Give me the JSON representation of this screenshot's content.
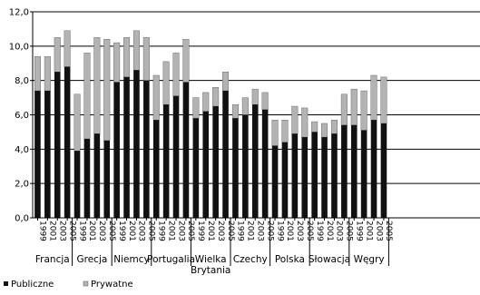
{
  "chart_data": {
    "type": "bar",
    "stacked": true,
    "title": "",
    "xlabel": "",
    "ylabel": "",
    "ylim": [
      0,
      12
    ],
    "yticks": [
      "0,0",
      "2,0",
      "4,0",
      "6,0",
      "8,0",
      "10,0",
      "12,0"
    ],
    "grid": true,
    "legend_position": "bottom-left",
    "year_labels": [
      "1999",
      "2001",
      "2003",
      "2005"
    ],
    "series": [
      {
        "name": "Publiczne",
        "color": "#111111"
      },
      {
        "name": "Prywatne",
        "color": "#b3b3b3"
      }
    ],
    "groups": [
      {
        "label": [
          "Francja"
        ],
        "public": [
          7.4,
          7.4,
          8.5,
          8.8
        ],
        "private": [
          2.0,
          2.0,
          2.0,
          2.1
        ]
      },
      {
        "label": [
          "Grecja"
        ],
        "public": [
          3.9,
          4.6,
          4.9,
          4.5
        ],
        "private": [
          3.3,
          5.0,
          5.6,
          5.9
        ]
      },
      {
        "label": [
          "Niemcy"
        ],
        "public": [
          7.9,
          8.2,
          8.6,
          8.0
        ],
        "private": [
          2.3,
          2.3,
          2.3,
          2.5
        ]
      },
      {
        "label": [
          "Portugalia"
        ],
        "public": [
          5.7,
          6.6,
          7.1,
          7.9
        ],
        "private": [
          2.6,
          2.5,
          2.5,
          2.5
        ]
      },
      {
        "label": [
          "Wielka",
          "Brytania"
        ],
        "public": [
          5.8,
          6.2,
          6.5,
          7.4
        ],
        "private": [
          1.2,
          1.1,
          1.1,
          1.1
        ]
      },
      {
        "label": [
          "Czechy"
        ],
        "public": [
          5.8,
          6.0,
          6.6,
          6.3
        ],
        "private": [
          0.8,
          1.0,
          0.9,
          1.0
        ]
      },
      {
        "label": [
          "Polska"
        ],
        "public": [
          4.2,
          4.4,
          4.9,
          4.7
        ],
        "private": [
          1.5,
          1.3,
          1.6,
          1.7
        ]
      },
      {
        "label": [
          "Słowacja"
        ],
        "public": [
          5.0,
          4.7,
          4.9,
          5.4
        ],
        "private": [
          0.6,
          0.8,
          0.8,
          1.8
        ]
      },
      {
        "label": [
          "Węgry"
        ],
        "public": [
          5.4,
          5.1,
          5.7,
          5.5
        ],
        "private": [
          2.1,
          2.3,
          2.6,
          2.7
        ]
      }
    ]
  }
}
